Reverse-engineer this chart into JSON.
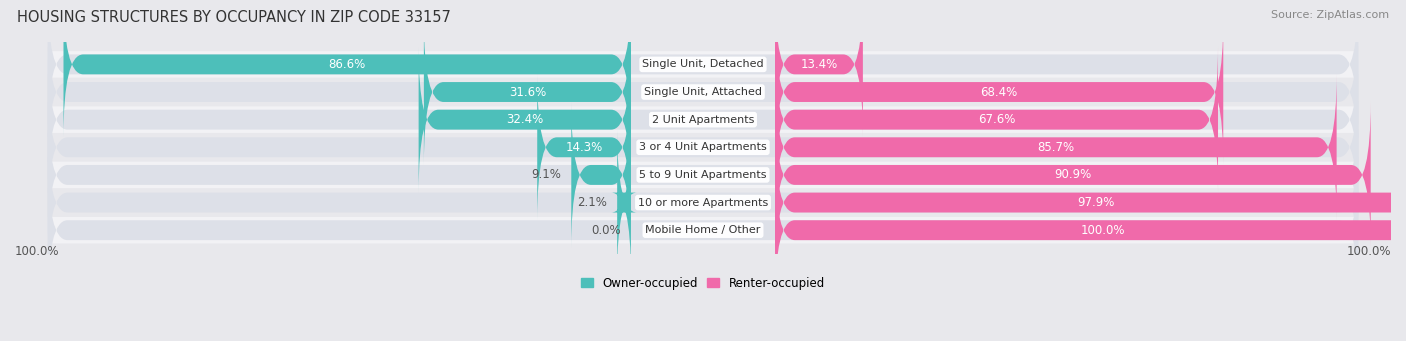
{
  "title": "HOUSING STRUCTURES BY OCCUPANCY IN ZIP CODE 33157",
  "source": "Source: ZipAtlas.com",
  "categories": [
    "Single Unit, Detached",
    "Single Unit, Attached",
    "2 Unit Apartments",
    "3 or 4 Unit Apartments",
    "5 to 9 Unit Apartments",
    "10 or more Apartments",
    "Mobile Home / Other"
  ],
  "owner_pct": [
    86.6,
    31.6,
    32.4,
    14.3,
    9.1,
    2.1,
    0.0
  ],
  "renter_pct": [
    13.4,
    68.4,
    67.6,
    85.7,
    90.9,
    97.9,
    100.0
  ],
  "owner_color": "#4dbfba",
  "renter_color": "#f06aaa",
  "bg_row_odd": "#e8e8ec",
  "bg_row_even": "#f2f2f5",
  "bar_bg": "#dcdce4",
  "title_fontsize": 10.5,
  "label_fontsize": 8.5,
  "source_fontsize": 8,
  "legend_fontsize": 8.5,
  "pct_label_outside_color": "#555555",
  "pct_label_inside_color": "#ffffff",
  "cat_label_color": "#333333",
  "bottom_label": "100.0%"
}
